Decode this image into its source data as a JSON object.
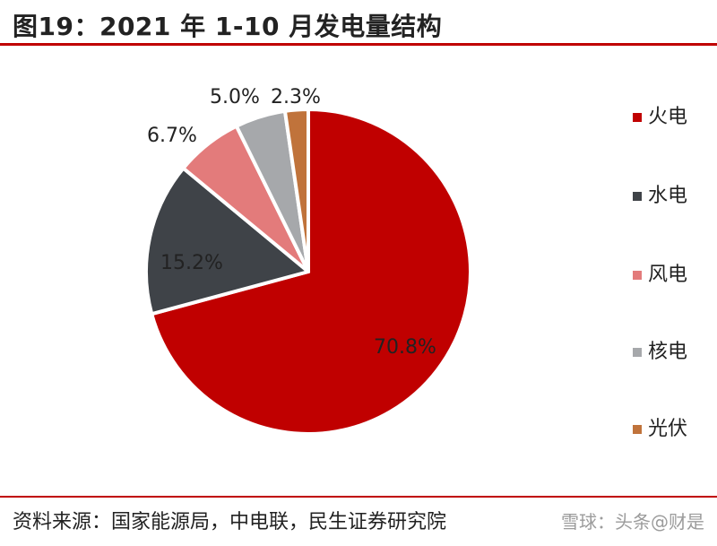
{
  "header": {
    "title": "图19：2021 年 1-10 月发电量结构"
  },
  "chart_data": {
    "type": "pie",
    "title": "图19：2021 年 1-10 月发电量结构",
    "slices": [
      {
        "name": "火电",
        "value": 70.8,
        "label": "70.8%",
        "color": "#c00000"
      },
      {
        "name": "水电",
        "value": 15.2,
        "label": "15.2%",
        "color": "#3f4348"
      },
      {
        "name": "风电",
        "value": 6.7,
        "label": "6.7%",
        "color": "#e37b7b"
      },
      {
        "name": "核电",
        "value": 5.0,
        "label": "5.0%",
        "color": "#a6a8ab"
      },
      {
        "name": "光伏",
        "value": 2.3,
        "label": "2.3%",
        "color": "#c0733b"
      }
    ],
    "legend": "right",
    "start": "12 o'clock, clockwise"
  },
  "footer": {
    "source": "资料来源：国家能源局，中电联，民生证券研究院",
    "watermark": "雪球：头条@财是"
  }
}
